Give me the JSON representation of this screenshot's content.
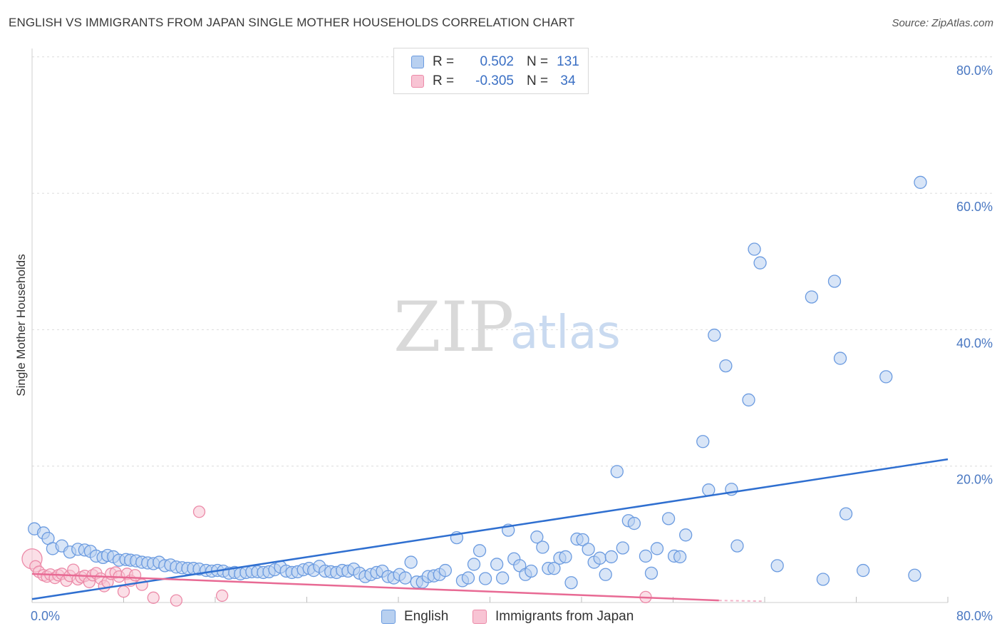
{
  "header": {
    "title": "ENGLISH VS IMMIGRANTS FROM JAPAN SINGLE MOTHER HOUSEHOLDS CORRELATION CHART",
    "source": "Source: ZipAtlas.com"
  },
  "watermark": {
    "zip": "ZIP",
    "atlas": "atlas"
  },
  "legend_top": {
    "rows": [
      {
        "r_label": "R =",
        "r_value": "0.502",
        "n_label": "N =",
        "n_value": "131"
      },
      {
        "r_label": "R =",
        "r_value": "-0.305",
        "n_label": "N =",
        "n_value": "34"
      }
    ]
  },
  "colors": {
    "english_fill": "#b8d0f0",
    "english_stroke": "#6b9be0",
    "english_line": "#2f6fd0",
    "japan_fill": "#f8c4d4",
    "japan_stroke": "#ec8aa8",
    "japan_line": "#e86a94",
    "tick": "#4a78c2",
    "grid": "#dcdcdc"
  },
  "chart_data": {
    "type": "scatter",
    "xlabel": "",
    "ylabel": "Single Mother Households",
    "xlim": [
      0,
      80
    ],
    "ylim": [
      0,
      80
    ],
    "y_ticks": [
      "20.0%",
      "40.0%",
      "60.0%",
      "80.0%"
    ],
    "y_tick_values": [
      20,
      40,
      60,
      80
    ],
    "x_tick_labels": [
      "0.0%",
      "80.0%"
    ],
    "series": [
      {
        "name": "English",
        "trend": [
          [
            0,
            0.5
          ],
          [
            80,
            21.0
          ]
        ],
        "points": [
          [
            0.2,
            10.8
          ],
          [
            1.0,
            10.2
          ],
          [
            1.4,
            9.4
          ],
          [
            1.8,
            7.9
          ],
          [
            2.6,
            8.3
          ],
          [
            3.3,
            7.4
          ],
          [
            4.0,
            7.8
          ],
          [
            4.6,
            7.7
          ],
          [
            5.1,
            7.5
          ],
          [
            5.6,
            6.8
          ],
          [
            6.2,
            6.6
          ],
          [
            6.6,
            6.9
          ],
          [
            7.1,
            6.7
          ],
          [
            7.6,
            6.2
          ],
          [
            8.2,
            6.3
          ],
          [
            8.6,
            6.2
          ],
          [
            9.1,
            6.1
          ],
          [
            9.6,
            5.9
          ],
          [
            10.1,
            5.8
          ],
          [
            10.6,
            5.7
          ],
          [
            11.1,
            5.9
          ],
          [
            11.6,
            5.4
          ],
          [
            12.1,
            5.5
          ],
          [
            12.6,
            5.2
          ],
          [
            13.1,
            5.1
          ],
          [
            13.6,
            5.0
          ],
          [
            14.1,
            5.0
          ],
          [
            14.6,
            4.9
          ],
          [
            15.2,
            4.7
          ],
          [
            15.7,
            4.6
          ],
          [
            16.2,
            4.7
          ],
          [
            16.7,
            4.6
          ],
          [
            17.2,
            4.3
          ],
          [
            17.7,
            4.4
          ],
          [
            18.2,
            4.2
          ],
          [
            18.7,
            4.4
          ],
          [
            19.2,
            4.5
          ],
          [
            19.7,
            4.5
          ],
          [
            20.2,
            4.4
          ],
          [
            20.7,
            4.5
          ],
          [
            21.2,
            4.8
          ],
          [
            21.7,
            5.2
          ],
          [
            22.2,
            4.6
          ],
          [
            22.7,
            4.4
          ],
          [
            23.2,
            4.5
          ],
          [
            23.7,
            4.8
          ],
          [
            24.2,
            5.0
          ],
          [
            24.6,
            4.7
          ],
          [
            25.1,
            5.3
          ],
          [
            25.6,
            4.6
          ],
          [
            26.1,
            4.5
          ],
          [
            26.6,
            4.4
          ],
          [
            27.1,
            4.7
          ],
          [
            27.6,
            4.6
          ],
          [
            28.1,
            4.9
          ],
          [
            28.6,
            4.3
          ],
          [
            29.1,
            3.8
          ],
          [
            29.6,
            4.1
          ],
          [
            30.1,
            4.4
          ],
          [
            30.6,
            4.6
          ],
          [
            31.1,
            3.8
          ],
          [
            31.6,
            3.6
          ],
          [
            32.1,
            4.1
          ],
          [
            32.6,
            3.6
          ],
          [
            33.1,
            5.9
          ],
          [
            33.6,
            3.0
          ],
          [
            34.1,
            3.0
          ],
          [
            34.6,
            3.8
          ],
          [
            35.1,
            3.9
          ],
          [
            35.6,
            4.1
          ],
          [
            36.1,
            4.7
          ],
          [
            37.1,
            9.5
          ],
          [
            37.6,
            3.2
          ],
          [
            38.1,
            3.6
          ],
          [
            38.6,
            5.6
          ],
          [
            39.1,
            7.6
          ],
          [
            39.6,
            3.5
          ],
          [
            40.6,
            5.6
          ],
          [
            41.1,
            3.6
          ],
          [
            41.6,
            10.6
          ],
          [
            42.1,
            6.4
          ],
          [
            42.6,
            5.4
          ],
          [
            43.1,
            4.1
          ],
          [
            43.6,
            4.6
          ],
          [
            44.1,
            9.6
          ],
          [
            44.6,
            8.1
          ],
          [
            45.1,
            5.0
          ],
          [
            45.6,
            5.0
          ],
          [
            46.1,
            6.5
          ],
          [
            46.6,
            6.7
          ],
          [
            47.1,
            2.9
          ],
          [
            47.6,
            9.3
          ],
          [
            48.1,
            9.2
          ],
          [
            48.6,
            7.8
          ],
          [
            49.1,
            5.9
          ],
          [
            49.6,
            6.5
          ],
          [
            50.1,
            4.1
          ],
          [
            50.6,
            6.7
          ],
          [
            51.1,
            19.2
          ],
          [
            51.6,
            8.0
          ],
          [
            52.1,
            12.0
          ],
          [
            52.6,
            11.6
          ],
          [
            53.6,
            6.8
          ],
          [
            54.1,
            4.3
          ],
          [
            54.6,
            7.9
          ],
          [
            55.6,
            12.3
          ],
          [
            56.1,
            6.8
          ],
          [
            56.6,
            6.7
          ],
          [
            57.1,
            9.9
          ],
          [
            58.6,
            23.6
          ],
          [
            59.1,
            16.5
          ],
          [
            59.6,
            39.2
          ],
          [
            60.6,
            34.7
          ],
          [
            61.1,
            16.6
          ],
          [
            61.6,
            8.3
          ],
          [
            62.6,
            29.7
          ],
          [
            63.1,
            51.8
          ],
          [
            63.6,
            49.8
          ],
          [
            65.1,
            5.4
          ],
          [
            68.1,
            44.8
          ],
          [
            69.1,
            3.4
          ],
          [
            70.1,
            47.1
          ],
          [
            70.6,
            35.8
          ],
          [
            71.1,
            13.0
          ],
          [
            72.6,
            4.7
          ],
          [
            74.6,
            33.1
          ],
          [
            77.1,
            4.0
          ],
          [
            77.6,
            61.6
          ]
        ]
      },
      {
        "name": "Immigrants from Japan",
        "trend": [
          [
            0,
            4.2
          ],
          [
            60,
            0.3
          ]
        ],
        "points": [
          [
            0.0,
            6.4
          ],
          [
            0.3,
            5.3
          ],
          [
            0.6,
            4.5
          ],
          [
            1.0,
            4.0
          ],
          [
            1.3,
            3.8
          ],
          [
            1.6,
            4.1
          ],
          [
            2.0,
            3.6
          ],
          [
            2.3,
            4.0
          ],
          [
            2.6,
            4.2
          ],
          [
            3.0,
            3.2
          ],
          [
            3.3,
            3.9
          ],
          [
            3.6,
            4.8
          ],
          [
            4.0,
            3.4
          ],
          [
            4.3,
            3.7
          ],
          [
            4.6,
            3.9
          ],
          [
            5.0,
            3.0
          ],
          [
            5.3,
            4.0
          ],
          [
            5.6,
            4.3
          ],
          [
            6.0,
            3.5
          ],
          [
            6.3,
            2.4
          ],
          [
            6.6,
            3.0
          ],
          [
            6.9,
            4.2
          ],
          [
            7.3,
            4.4
          ],
          [
            7.6,
            3.8
          ],
          [
            8.0,
            1.6
          ],
          [
            8.3,
            4.2
          ],
          [
            8.6,
            3.2
          ],
          [
            9.0,
            4.0
          ],
          [
            9.6,
            2.6
          ],
          [
            10.6,
            0.7
          ],
          [
            12.6,
            0.3
          ],
          [
            14.6,
            13.3
          ],
          [
            16.6,
            1.0
          ],
          [
            53.6,
            0.8
          ]
        ]
      }
    ]
  },
  "legend_bottom": {
    "items": [
      "English",
      "Immigrants from Japan"
    ]
  }
}
